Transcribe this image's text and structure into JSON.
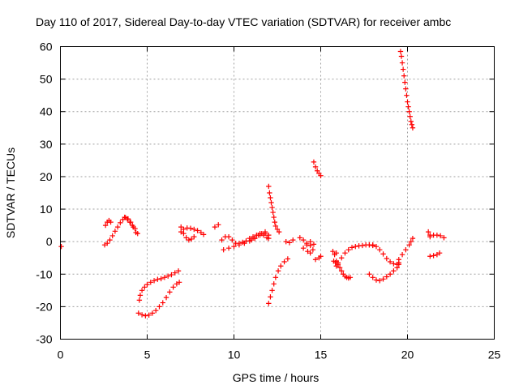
{
  "chart_data": {
    "type": "scatter",
    "title": "Day 110 of 2017, Sidereal Day-to-day VTEC variation (SDTVAR) for receiver ambc",
    "xlabel": "GPS time / hours",
    "ylabel": "SDTVAR / TECUs",
    "xlim": [
      0,
      25
    ],
    "ylim": [
      -30,
      60
    ],
    "xticks": [
      0,
      5,
      10,
      15,
      20,
      25
    ],
    "yticks": [
      -30,
      -20,
      -10,
      0,
      10,
      20,
      30,
      40,
      50,
      60
    ],
    "grid": true,
    "marker": "+",
    "color": "#ff0000",
    "series": [
      {
        "x": [
          0.05
        ],
        "y": [
          -1.5
        ]
      },
      {
        "x": [
          2.6,
          2.7,
          2.8,
          2.9
        ],
        "y": [
          5.0,
          6.0,
          6.5,
          6.0
        ]
      },
      {
        "x": [
          2.55,
          2.7,
          2.85,
          3.0,
          3.15,
          3.3,
          3.45,
          3.6,
          3.75,
          3.9,
          4.05,
          4.2,
          4.35
        ],
        "y": [
          -1.0,
          -0.5,
          0.5,
          1.8,
          3.2,
          4.5,
          5.8,
          6.8,
          7.4,
          7.0,
          6.0,
          4.5,
          2.8
        ]
      },
      {
        "x": [
          3.7,
          3.85,
          4.0,
          4.15,
          4.3,
          4.45
        ],
        "y": [
          7.5,
          7.0,
          6.0,
          5.0,
          4.0,
          2.5
        ]
      },
      {
        "x": [
          4.55,
          4.6,
          4.7,
          4.85,
          5.0,
          5.2,
          5.4,
          5.6,
          5.8,
          6.0,
          6.2,
          6.4,
          6.6,
          6.8
        ],
        "y": [
          -18.0,
          -16.5,
          -15.0,
          -14.0,
          -13.2,
          -12.5,
          -12.0,
          -11.6,
          -11.4,
          -11.0,
          -10.6,
          -10.2,
          -9.6,
          -9.0
        ]
      },
      {
        "x": [
          4.5,
          4.7,
          4.9,
          5.1,
          5.3,
          5.5,
          5.7,
          5.9,
          6.1,
          6.3,
          6.5,
          6.7,
          6.85
        ],
        "y": [
          -22.0,
          -22.5,
          -22.8,
          -22.6,
          -22.0,
          -21.2,
          -20.0,
          -18.8,
          -17.2,
          -15.5,
          -14.0,
          -13.0,
          -12.5
        ]
      },
      {
        "x": [
          6.95,
          7.1,
          7.3,
          7.5,
          7.7,
          7.9,
          8.1,
          8.25
        ],
        "y": [
          3.0,
          3.8,
          4.2,
          4.1,
          3.8,
          3.4,
          2.8,
          2.2
        ]
      },
      {
        "x": [
          6.95,
          7.1,
          7.25,
          7.4,
          7.55,
          7.7
        ],
        "y": [
          4.5,
          2.5,
          1.2,
          0.5,
          0.8,
          1.5
        ]
      },
      {
        "x": [
          8.9,
          9.1
        ],
        "y": [
          4.5,
          5.2
        ]
      },
      {
        "x": [
          9.3,
          9.5,
          9.7,
          9.9,
          10.1,
          10.3,
          10.5,
          10.7,
          10.9,
          11.1,
          11.3,
          11.5,
          11.7,
          11.9,
          12.0
        ],
        "y": [
          0.5,
          1.5,
          1.5,
          0.5,
          -0.5,
          -0.5,
          -0.2,
          0.2,
          1.0,
          1.5,
          2.0,
          2.5,
          2.0,
          1.2,
          1.0
        ]
      },
      {
        "x": [
          9.4,
          9.7,
          10.0,
          10.3,
          10.6,
          10.9,
          11.2,
          11.5,
          11.8
        ],
        "y": [
          -2.5,
          -2.0,
          -1.5,
          -1.0,
          -0.5,
          0.2,
          1.0,
          2.0,
          2.5
        ]
      },
      {
        "x": [
          11.0,
          11.2,
          11.4,
          11.6,
          11.8,
          12.0
        ],
        "y": [
          0.5,
          1.0,
          2.0,
          2.5,
          3.0,
          2.0
        ]
      },
      {
        "x": [
          12.0,
          12.05,
          12.1,
          12.15,
          12.2,
          12.25,
          12.3,
          12.35,
          12.4,
          12.5,
          12.6
        ],
        "y": [
          17.0,
          15.0,
          13.5,
          12.0,
          10.5,
          9.0,
          7.5,
          6.0,
          4.8,
          3.8,
          3.0
        ]
      },
      {
        "x": [
          12.0,
          12.1,
          12.2,
          12.3,
          12.4,
          12.55,
          12.7,
          12.9,
          13.1
        ],
        "y": [
          -19.0,
          -17.0,
          -15.0,
          -13.0,
          -11.0,
          -9.0,
          -7.5,
          -6.2,
          -5.3
        ]
      },
      {
        "x": [
          13.0,
          13.2,
          13.4
        ],
        "y": [
          0.0,
          -0.3,
          0.5
        ]
      },
      {
        "x": [
          13.8,
          14.0,
          14.2,
          14.4,
          14.6
        ],
        "y": [
          1.2,
          0.5,
          -0.5,
          -1.2,
          -0.8
        ]
      },
      {
        "x": [
          14.0,
          14.2,
          14.4
        ],
        "y": [
          -2.0,
          -1.0,
          0.0
        ]
      },
      {
        "x": [
          14.25,
          14.4,
          14.55
        ],
        "y": [
          -3.0,
          -3.5,
          -2.5
        ]
      },
      {
        "x": [
          14.6,
          14.7,
          14.8,
          14.9,
          15.0
        ],
        "y": [
          24.5,
          23.0,
          21.8,
          21.0,
          20.3
        ]
      },
      {
        "x": [
          14.7,
          14.9,
          15.0
        ],
        "y": [
          -5.5,
          -5.0,
          -4.5
        ]
      },
      {
        "x": [
          15.7,
          15.8,
          15.9
        ],
        "y": [
          -3.0,
          -4.0,
          -3.5
        ]
      },
      {
        "x": [
          15.75,
          15.85
        ],
        "y": [
          -6.0,
          -6.5
        ]
      },
      {
        "x": [
          15.9,
          16.0,
          16.1,
          16.2,
          16.3,
          16.4,
          16.5,
          16.6,
          16.7
        ],
        "y": [
          -6.0,
          -7.0,
          -8.0,
          -9.0,
          -10.0,
          -10.7,
          -11.0,
          -11.2,
          -11.0
        ]
      },
      {
        "x": [
          15.9,
          16.0,
          16.2,
          16.4,
          16.6,
          16.8,
          17.0,
          17.2,
          17.4,
          17.6,
          17.8,
          18.0
        ],
        "y": [
          -7.5,
          -6.5,
          -5.0,
          -3.5,
          -2.5,
          -1.8,
          -1.5,
          -1.3,
          -1.2,
          -1.0,
          -1.0,
          -1.2
        ]
      },
      {
        "x": [
          17.8,
          18.0,
          18.2,
          18.4,
          18.6,
          18.8,
          19.0,
          19.2,
          19.4,
          19.5
        ],
        "y": [
          -10.0,
          -11.0,
          -11.8,
          -12.0,
          -11.5,
          -10.8,
          -10.0,
          -9.0,
          -8.0,
          -7.0
        ]
      },
      {
        "x": [
          17.8,
          18.0,
          18.2,
          18.4,
          18.6,
          18.8,
          19.0,
          19.2,
          19.4,
          19.5
        ],
        "y": [
          -1.0,
          -1.0,
          -1.5,
          -2.5,
          -3.8,
          -5.2,
          -6.2,
          -6.8,
          -7.0,
          -6.5
        ]
      },
      {
        "x": [
          19.5,
          19.7,
          19.9,
          20.1,
          20.2,
          20.3
        ],
        "y": [
          -5.5,
          -4.0,
          -2.5,
          -1.0,
          0.0,
          1.0
        ]
      },
      {
        "x": [
          19.6,
          19.65,
          19.7,
          19.75,
          19.8,
          19.85,
          19.9,
          19.95,
          20.0,
          20.05,
          20.1,
          20.15,
          20.2,
          20.25,
          20.3
        ],
        "y": [
          58.5,
          57.0,
          55.0,
          53.0,
          51.0,
          49.0,
          47.0,
          45.0,
          43.0,
          41.5,
          40.0,
          38.5,
          37.0,
          36.0,
          35.0
        ]
      },
      {
        "x": [
          21.2,
          21.3
        ],
        "y": [
          3.0,
          2.0
        ]
      },
      {
        "x": [
          21.3,
          21.5,
          21.7,
          21.9,
          22.1
        ],
        "y": [
          1.5,
          2.0,
          2.0,
          1.8,
          1.2
        ]
      },
      {
        "x": [
          21.3,
          21.5,
          21.7,
          21.85
        ],
        "y": [
          -4.5,
          -4.3,
          -4.0,
          -3.5
        ]
      }
    ]
  }
}
